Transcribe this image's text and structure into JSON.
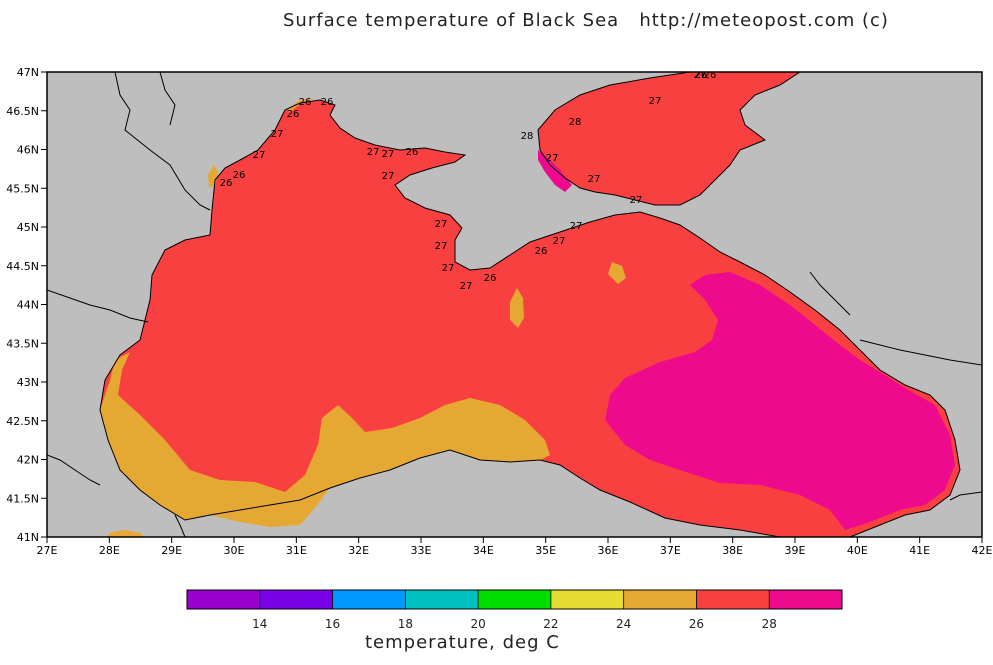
{
  "title": "Surface temperature of Black Sea   http://meteopost.com (c)",
  "colors": {
    "land": "#bebebe",
    "t24_26": "#e5a832",
    "t26_28": "#f94040",
    "t28_plus": "#ee0a8c",
    "coast": "#000000"
  },
  "axes": {
    "lat_labels": [
      "47N",
      "46.5N",
      "46N",
      "45.5N",
      "45N",
      "44.5N",
      "44N",
      "43.5N",
      "43N",
      "42.5N",
      "42N",
      "41.5N",
      "41N"
    ],
    "lon_labels": [
      "27E",
      "28E",
      "29E",
      "30E",
      "31E",
      "32E",
      "33E",
      "34E",
      "35E",
      "36E",
      "37E",
      "38E",
      "39E",
      "40E",
      "41E",
      "42E"
    ]
  },
  "contour_labels": [
    "26",
    "26",
    "26",
    "27",
    "27",
    "26",
    "26",
    "27",
    "27",
    "26",
    "27",
    "27",
    "27",
    "27",
    "27",
    "26",
    "26",
    "27",
    "27",
    "28",
    "28",
    "27",
    "27",
    "27",
    "27",
    "26",
    "26",
    "27"
  ],
  "legend": {
    "colors": [
      "#9900cc",
      "#7a00e6",
      "#0099ff",
      "#00c0c0",
      "#00dd00",
      "#e6dd33",
      "#e5a832",
      "#f94040",
      "#ee0a8c"
    ],
    "ticks": [
      "14",
      "16",
      "18",
      "20",
      "22",
      "24",
      "26",
      "28"
    ],
    "title": "temperature, deg C"
  }
}
